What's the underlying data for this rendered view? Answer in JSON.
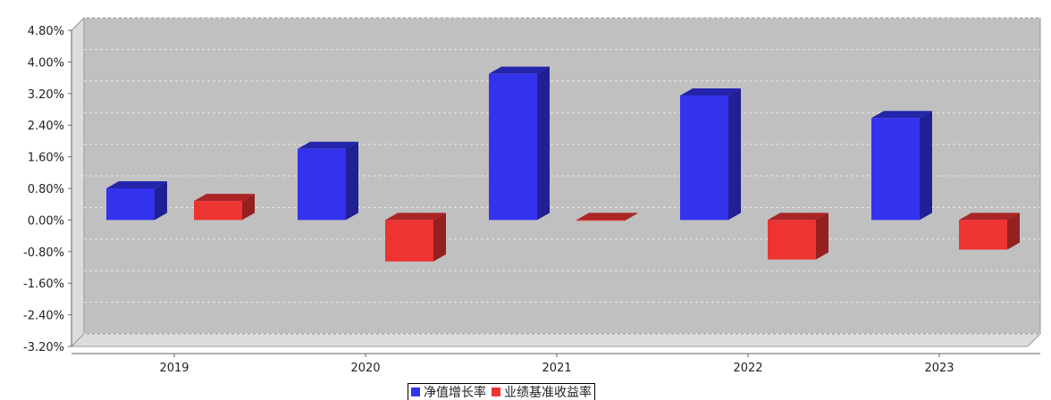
{
  "chart_data": {
    "type": "bar",
    "title": "",
    "xlabel": "",
    "ylabel": "",
    "categories": [
      "2019",
      "2020",
      "2021",
      "2022",
      "2023"
    ],
    "series": [
      {
        "name": "净值增长率",
        "color": "#3333ee",
        "values": [
          0.8,
          1.8,
          3.7,
          3.15,
          2.58
        ]
      },
      {
        "name": "业绩基准收益率",
        "color": "#ee3333",
        "values": [
          0.48,
          -1.05,
          -0.02,
          -1.0,
          -0.75
        ]
      }
    ],
    "ylim": [
      -3.2,
      4.8
    ],
    "yticks": [
      "4.80%",
      "4.00%",
      "3.20%",
      "2.40%",
      "1.60%",
      "0.80%",
      "0.00%",
      "-0.80%",
      "-1.60%",
      "-2.40%",
      "-3.20%"
    ],
    "grid": true,
    "legend_position": "bottom-center",
    "style": "3d",
    "plot_background": "#c0c0c0"
  }
}
